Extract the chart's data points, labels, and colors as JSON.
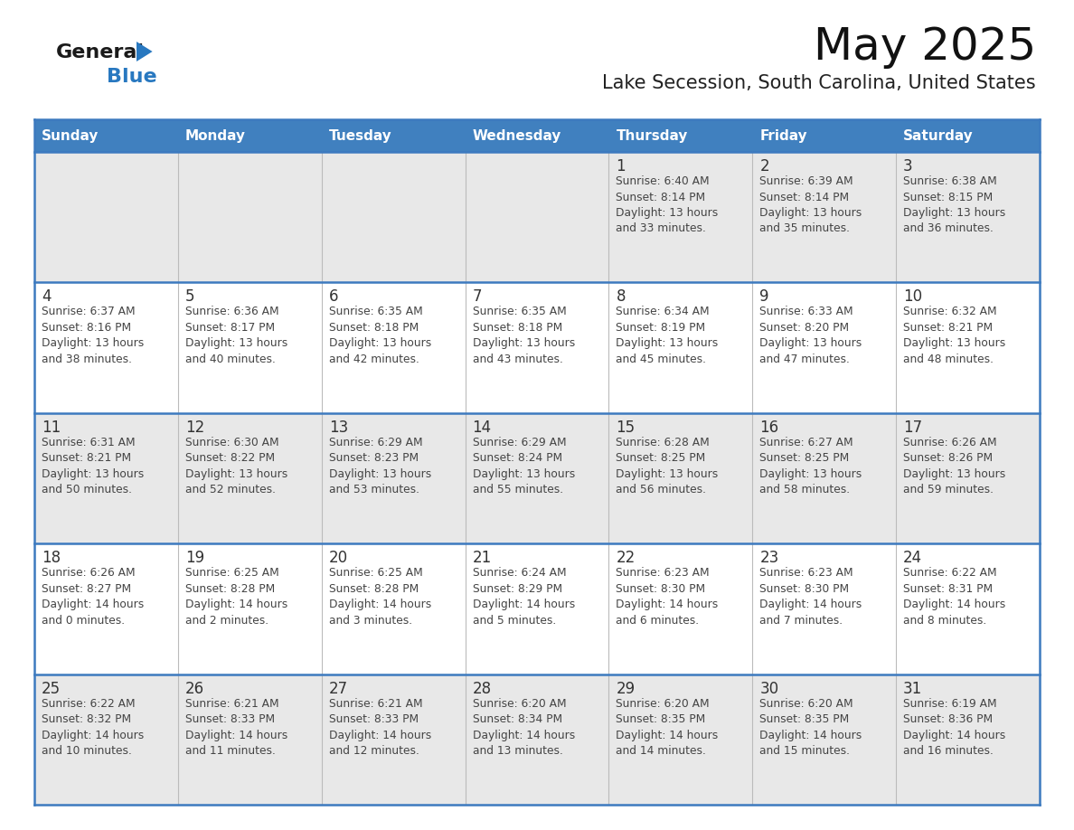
{
  "title": "May 2025",
  "subtitle": "Lake Secession, South Carolina, United States",
  "header_bg": "#4080bf",
  "header_text_color": "#ffffff",
  "header_days": [
    "Sunday",
    "Monday",
    "Tuesday",
    "Wednesday",
    "Thursday",
    "Friday",
    "Saturday"
  ],
  "row_bg_odd": "#e8e8e8",
  "row_bg_even": "#ffffff",
  "border_color": "#3d7abf",
  "day_number_color": "#333333",
  "cell_text_color": "#444444",
  "calendar": [
    [
      {
        "day": "",
        "info": ""
      },
      {
        "day": "",
        "info": ""
      },
      {
        "day": "",
        "info": ""
      },
      {
        "day": "",
        "info": ""
      },
      {
        "day": "1",
        "info": "Sunrise: 6:40 AM\nSunset: 8:14 PM\nDaylight: 13 hours\nand 33 minutes."
      },
      {
        "day": "2",
        "info": "Sunrise: 6:39 AM\nSunset: 8:14 PM\nDaylight: 13 hours\nand 35 minutes."
      },
      {
        "day": "3",
        "info": "Sunrise: 6:38 AM\nSunset: 8:15 PM\nDaylight: 13 hours\nand 36 minutes."
      }
    ],
    [
      {
        "day": "4",
        "info": "Sunrise: 6:37 AM\nSunset: 8:16 PM\nDaylight: 13 hours\nand 38 minutes."
      },
      {
        "day": "5",
        "info": "Sunrise: 6:36 AM\nSunset: 8:17 PM\nDaylight: 13 hours\nand 40 minutes."
      },
      {
        "day": "6",
        "info": "Sunrise: 6:35 AM\nSunset: 8:18 PM\nDaylight: 13 hours\nand 42 minutes."
      },
      {
        "day": "7",
        "info": "Sunrise: 6:35 AM\nSunset: 8:18 PM\nDaylight: 13 hours\nand 43 minutes."
      },
      {
        "day": "8",
        "info": "Sunrise: 6:34 AM\nSunset: 8:19 PM\nDaylight: 13 hours\nand 45 minutes."
      },
      {
        "day": "9",
        "info": "Sunrise: 6:33 AM\nSunset: 8:20 PM\nDaylight: 13 hours\nand 47 minutes."
      },
      {
        "day": "10",
        "info": "Sunrise: 6:32 AM\nSunset: 8:21 PM\nDaylight: 13 hours\nand 48 minutes."
      }
    ],
    [
      {
        "day": "11",
        "info": "Sunrise: 6:31 AM\nSunset: 8:21 PM\nDaylight: 13 hours\nand 50 minutes."
      },
      {
        "day": "12",
        "info": "Sunrise: 6:30 AM\nSunset: 8:22 PM\nDaylight: 13 hours\nand 52 minutes."
      },
      {
        "day": "13",
        "info": "Sunrise: 6:29 AM\nSunset: 8:23 PM\nDaylight: 13 hours\nand 53 minutes."
      },
      {
        "day": "14",
        "info": "Sunrise: 6:29 AM\nSunset: 8:24 PM\nDaylight: 13 hours\nand 55 minutes."
      },
      {
        "day": "15",
        "info": "Sunrise: 6:28 AM\nSunset: 8:25 PM\nDaylight: 13 hours\nand 56 minutes."
      },
      {
        "day": "16",
        "info": "Sunrise: 6:27 AM\nSunset: 8:25 PM\nDaylight: 13 hours\nand 58 minutes."
      },
      {
        "day": "17",
        "info": "Sunrise: 6:26 AM\nSunset: 8:26 PM\nDaylight: 13 hours\nand 59 minutes."
      }
    ],
    [
      {
        "day": "18",
        "info": "Sunrise: 6:26 AM\nSunset: 8:27 PM\nDaylight: 14 hours\nand 0 minutes."
      },
      {
        "day": "19",
        "info": "Sunrise: 6:25 AM\nSunset: 8:28 PM\nDaylight: 14 hours\nand 2 minutes."
      },
      {
        "day": "20",
        "info": "Sunrise: 6:25 AM\nSunset: 8:28 PM\nDaylight: 14 hours\nand 3 minutes."
      },
      {
        "day": "21",
        "info": "Sunrise: 6:24 AM\nSunset: 8:29 PM\nDaylight: 14 hours\nand 5 minutes."
      },
      {
        "day": "22",
        "info": "Sunrise: 6:23 AM\nSunset: 8:30 PM\nDaylight: 14 hours\nand 6 minutes."
      },
      {
        "day": "23",
        "info": "Sunrise: 6:23 AM\nSunset: 8:30 PM\nDaylight: 14 hours\nand 7 minutes."
      },
      {
        "day": "24",
        "info": "Sunrise: 6:22 AM\nSunset: 8:31 PM\nDaylight: 14 hours\nand 8 minutes."
      }
    ],
    [
      {
        "day": "25",
        "info": "Sunrise: 6:22 AM\nSunset: 8:32 PM\nDaylight: 14 hours\nand 10 minutes."
      },
      {
        "day": "26",
        "info": "Sunrise: 6:21 AM\nSunset: 8:33 PM\nDaylight: 14 hours\nand 11 minutes."
      },
      {
        "day": "27",
        "info": "Sunrise: 6:21 AM\nSunset: 8:33 PM\nDaylight: 14 hours\nand 12 minutes."
      },
      {
        "day": "28",
        "info": "Sunrise: 6:20 AM\nSunset: 8:34 PM\nDaylight: 14 hours\nand 13 minutes."
      },
      {
        "day": "29",
        "info": "Sunrise: 6:20 AM\nSunset: 8:35 PM\nDaylight: 14 hours\nand 14 minutes."
      },
      {
        "day": "30",
        "info": "Sunrise: 6:20 AM\nSunset: 8:35 PM\nDaylight: 14 hours\nand 15 minutes."
      },
      {
        "day": "31",
        "info": "Sunrise: 6:19 AM\nSunset: 8:36 PM\nDaylight: 14 hours\nand 16 minutes."
      }
    ]
  ],
  "logo_general_color": "#1a1a1a",
  "logo_blue_color": "#2878c0",
  "logo_triangle_color": "#2878c0",
  "fig_width": 11.88,
  "fig_height": 9.18,
  "dpi": 100
}
